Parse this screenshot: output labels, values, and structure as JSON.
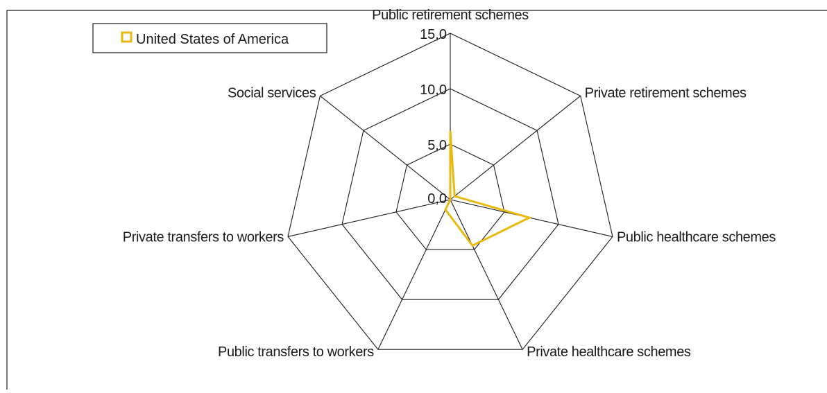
{
  "chart_data": {
    "type": "radar",
    "legend": {
      "position": "top-left",
      "entries": [
        {
          "name": "United States of America",
          "color": "#e8b90e"
        }
      ]
    },
    "axes": [
      "Public retirement schemes",
      "Private retirement schemes",
      "Public healthcare schemes",
      "Private healthcare schemes",
      "Public transfers to workers",
      "Private transfers to workers",
      "Social services"
    ],
    "range": [
      0,
      15
    ],
    "ticks": [
      "0,0",
      "5,0",
      "10,0",
      "15,0"
    ],
    "tick_values": [
      0,
      5,
      10,
      15
    ],
    "grid": true,
    "series": [
      {
        "name": "United States of America",
        "color": "#e8b90e",
        "values": [
          6.2,
          0.5,
          7.3,
          4.6,
          1.0,
          0.0,
          0.0
        ]
      }
    ]
  }
}
